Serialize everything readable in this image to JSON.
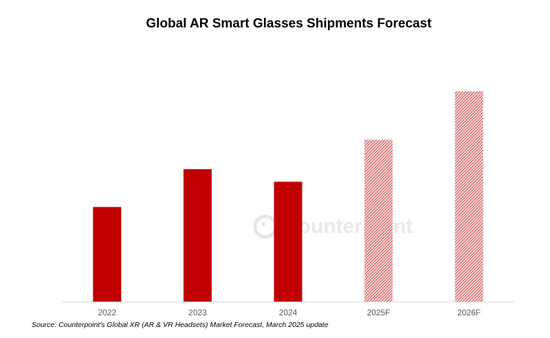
{
  "chart_data": {
    "type": "bar",
    "title": "Global AR Smart Glasses Shipments Forecast",
    "categories": [
      "2022",
      "2023",
      "2024",
      "2025F",
      "2026F"
    ],
    "values": [
      45,
      63,
      57,
      77,
      100
    ],
    "forecast": [
      false,
      false,
      false,
      true,
      true
    ],
    "ylim": [
      0,
      100
    ],
    "y_axis_shown": false,
    "grid": false,
    "xlabel": "",
    "ylabel": "",
    "colors": {
      "actual": "#c00000",
      "forecast_hatch": "#c00000"
    }
  },
  "source": "Source: Counterpoint's Global XR (AR & VR Headsets) Market Forecast, March 2025 update",
  "watermark": "Counterpoint"
}
